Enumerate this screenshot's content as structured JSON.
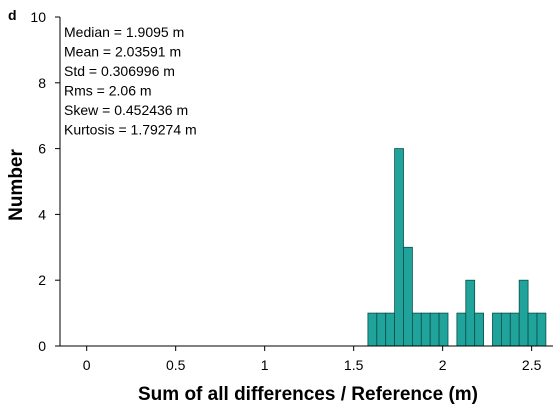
{
  "chart_data": {
    "type": "histogram",
    "panel_label": "d",
    "annotations": [
      "Median = 1.9095 m",
      "Mean = 2.03591 m",
      "Std = 0.306996 m",
      "Rms = 2.06 m",
      "Skew = 0.452436 m",
      "Kurtosis = 1.79274 m"
    ],
    "x_label": "Sum of all differences / Reference (m)",
    "y_label": "Number",
    "bins": [
      1.58,
      1.63,
      1.68,
      1.73,
      1.78,
      1.83,
      1.88,
      1.93,
      1.98,
      2.03,
      2.08,
      2.13,
      2.18,
      2.23,
      2.28,
      2.33,
      2.38,
      2.43,
      2.48,
      2.53,
      2.58
    ],
    "values": [
      1,
      1,
      1,
      6,
      3,
      1,
      1,
      1,
      1,
      0,
      1,
      2,
      1,
      0,
      1,
      1,
      1,
      2,
      1,
      1
    ],
    "color": "#1fa39a",
    "xlim": [
      -0.15,
      2.62
    ],
    "ylim": [
      0,
      10
    ],
    "xticks": [
      0,
      0.5,
      1,
      1.5,
      2,
      2.5
    ],
    "yticks": [
      0,
      2,
      4,
      6,
      8,
      10
    ]
  }
}
